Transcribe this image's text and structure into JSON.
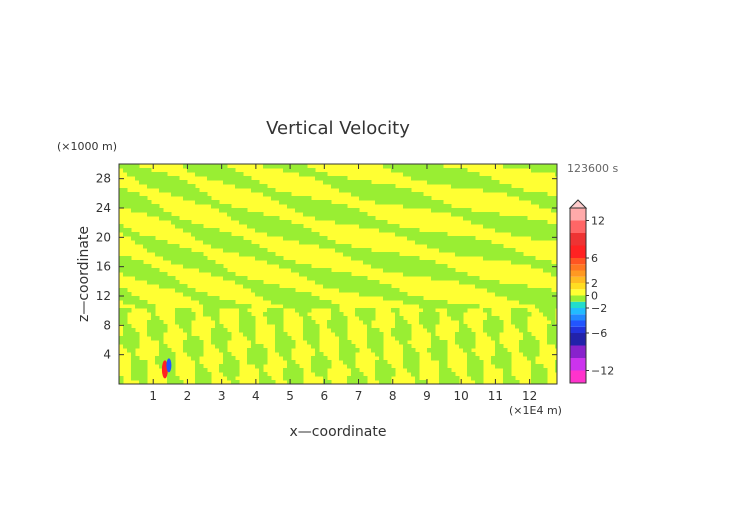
{
  "chart_data": {
    "type": "heatmap",
    "title": "Vertical Velocity",
    "xlabel": "x—coordinate",
    "ylabel": "z—coordinate",
    "x_unit": "(×1E4 m)",
    "y_unit": "(×1000 m)",
    "time_label": "123600 s",
    "xlim": [
      0,
      12.8
    ],
    "ylim": [
      0,
      30
    ],
    "x_ticks": [
      1,
      2,
      3,
      4,
      5,
      6,
      7,
      8,
      9,
      10,
      11,
      12
    ],
    "y_ticks": [
      4,
      8,
      12,
      16,
      20,
      24,
      28
    ],
    "grid": false,
    "colorbar": {
      "placement": "right",
      "range": [
        -14,
        14
      ],
      "tick_values": [
        12,
        6,
        2,
        0,
        -2,
        -6,
        -12
      ],
      "tick_labels": [
        "12",
        "6",
        "2",
        "0",
        "−2",
        "−6",
        "−12"
      ],
      "levels": [
        {
          "lo": -14,
          "hi": -12,
          "color": "#ff33cc"
        },
        {
          "lo": -12,
          "hi": -10,
          "color": "#cc33ee"
        },
        {
          "lo": -10,
          "hi": -8,
          "color": "#8822cc"
        },
        {
          "lo": -8,
          "hi": -6,
          "color": "#2222aa"
        },
        {
          "lo": -6,
          "hi": -5,
          "color": "#2233dd"
        },
        {
          "lo": -5,
          "hi": -4,
          "color": "#2255ff"
        },
        {
          "lo": -4,
          "hi": -3,
          "color": "#2288ff"
        },
        {
          "lo": -3,
          "hi": -2,
          "color": "#22bbff"
        },
        {
          "lo": -2,
          "hi": -1,
          "color": "#22ddcc"
        },
        {
          "lo": -1,
          "hi": 0,
          "color": "#99ee33"
        },
        {
          "lo": 0,
          "hi": 1,
          "color": "#ffff33"
        },
        {
          "lo": 1,
          "hi": 2,
          "color": "#ffdd22"
        },
        {
          "lo": 2,
          "hi": 3,
          "color": "#ffbb22"
        },
        {
          "lo": 3,
          "hi": 4,
          "color": "#ff9922"
        },
        {
          "lo": 4,
          "hi": 5,
          "color": "#ff7722"
        },
        {
          "lo": 5,
          "hi": 6,
          "color": "#ff5522"
        },
        {
          "lo": 6,
          "hi": 8,
          "color": "#ff2222"
        },
        {
          "lo": 8,
          "hi": 10,
          "color": "#ee3333"
        },
        {
          "lo": 10,
          "hi": 12,
          "color": "#ff6666"
        },
        {
          "lo": 12,
          "hi": 14,
          "color": "#ffaaaa"
        }
      ]
    },
    "field_colors": {
      "positive": "#ffff33",
      "negative": "#99ee33"
    },
    "feature": {
      "x": 1.4,
      "z": 2.0,
      "note_colors": [
        "#ff2222",
        "#2255ff"
      ]
    }
  }
}
